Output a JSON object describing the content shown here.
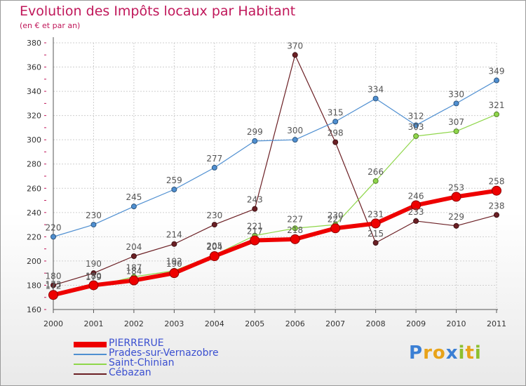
{
  "title": "Evolution des Impôts locaux par Habitant",
  "subtitle": "(en € et par an)",
  "brand": {
    "letters": [
      "P",
      "r",
      "o",
      "x",
      "i",
      "t",
      "i"
    ],
    "colors": [
      "#3b7fd4",
      "#e8a31a",
      "#e8a31a",
      "#3b7fd4",
      "#8dbf2e",
      "#e8a31a",
      "#8dbf2e"
    ]
  },
  "chart_data": {
    "type": "line",
    "title": "Evolution des Impôts locaux par Habitant",
    "xlabel": "",
    "ylabel": "(en € et par an)",
    "categories": [
      "2000",
      "2001",
      "2002",
      "2003",
      "2004",
      "2005",
      "2006",
      "2007",
      "2008",
      "2009",
      "2010",
      "2011"
    ],
    "ylim": [
      160,
      380
    ],
    "yticks": [
      160,
      180,
      200,
      220,
      240,
      260,
      280,
      300,
      320,
      340,
      360,
      380
    ],
    "grid": true,
    "legend_position": "bottom-left",
    "series": [
      {
        "name": "Cébazan",
        "color": "#6b1f24",
        "values": [
          180,
          190,
          204,
          214,
          230,
          243,
          370,
          298,
          215,
          233,
          229,
          238
        ],
        "labels": [
          "180",
          "190",
          "204",
          "214",
          "230",
          "243",
          "370",
          "298",
          "215",
          "233",
          "229",
          "238"
        ]
      },
      {
        "name": "Prades-sur-Vernazobre",
        "color": "#4f8fd1",
        "values": [
          220,
          230,
          245,
          259,
          277,
          299,
          300,
          315,
          334,
          312,
          330,
          349
        ],
        "labels": [
          "220",
          "230",
          "245",
          "259",
          "277",
          "299",
          "300",
          "315",
          "334",
          "312",
          "330",
          "349"
        ]
      },
      {
        "name": "Saint-Chinian",
        "color": "#8fd64a",
        "values": [
          173,
          179,
          187,
          192,
          205,
          221,
          227,
          230,
          266,
          303,
          307,
          321
        ],
        "labels": [
          "173",
          "179",
          "187",
          "192",
          "205",
          "221",
          "227",
          "230",
          "266",
          "303",
          "307",
          "321"
        ]
      },
      {
        "name": "PIERRERUE",
        "color": "#ee0000",
        "values": [
          172,
          180,
          184,
          190,
          204,
          217,
          218,
          227,
          231,
          246,
          253,
          258
        ],
        "labels": [
          "172",
          "180",
          "184",
          "190",
          "204",
          "217",
          "218",
          "227",
          "231",
          "246",
          "253",
          "258"
        ]
      }
    ],
    "legend": [
      "PIERRERUE",
      "Prades-sur-Vernazobre",
      "Saint-Chinian",
      "Cébazan"
    ]
  }
}
